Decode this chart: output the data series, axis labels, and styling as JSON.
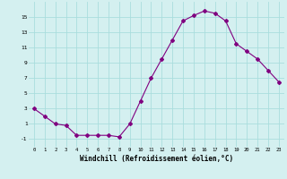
{
  "x": [
    0,
    1,
    2,
    3,
    4,
    5,
    6,
    7,
    8,
    9,
    10,
    11,
    12,
    13,
    14,
    15,
    16,
    17,
    18,
    19,
    20,
    21,
    22,
    23
  ],
  "y": [
    3,
    2,
    1,
    0.8,
    -0.5,
    -0.5,
    -0.5,
    -0.5,
    -0.7,
    1,
    4,
    7,
    9.5,
    12,
    14.5,
    15.2,
    15.8,
    15.5,
    14.5,
    11.5,
    10.5,
    9.5,
    8,
    6.5
  ],
  "line_color": "#800080",
  "marker": "D",
  "marker_size": 2,
  "bg_color": "#d4f0f0",
  "grid_color": "#aadddd",
  "xlabel": "Windchill (Refroidissement éolien,°C)",
  "xlabel_fontsize": 5.5,
  "yticks": [
    -1,
    1,
    3,
    5,
    7,
    9,
    11,
    13,
    15
  ],
  "ytick_labels": [
    "-1",
    "1",
    "3",
    "5",
    "7",
    "9",
    "11",
    "13",
    "15"
  ],
  "xticks": [
    0,
    1,
    2,
    3,
    4,
    5,
    6,
    7,
    8,
    9,
    10,
    11,
    12,
    13,
    14,
    15,
    16,
    17,
    18,
    19,
    20,
    21,
    22,
    23
  ],
  "ylim": [
    -2,
    17
  ],
  "xlim": [
    -0.5,
    23.5
  ]
}
